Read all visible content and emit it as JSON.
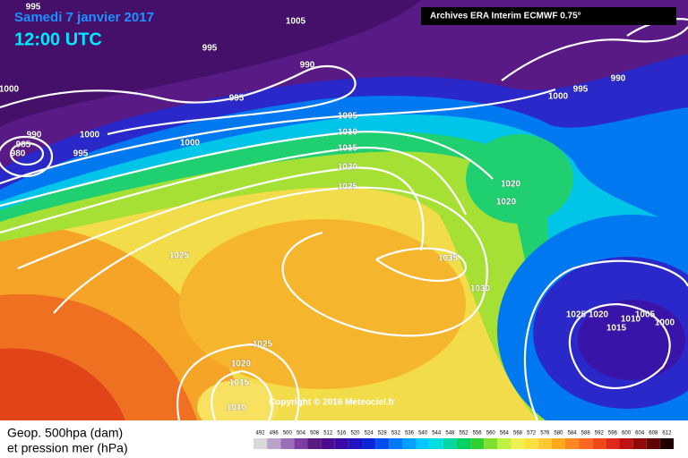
{
  "header": {
    "date": "Samedi 7 janvier 2017",
    "time": "12:00 UTC",
    "source": "Archives ERA Interim ECMWF 0.75°"
  },
  "copyright": "Copyright © 2016 Meteociel.fr",
  "legend": {
    "line1": "Geop. 500hpa (dam)",
    "line2": "et pression mer (hPa)"
  },
  "colorbar": {
    "labels": [
      492,
      496,
      500,
      504,
      508,
      512,
      516,
      520,
      524,
      528,
      532,
      536,
      540,
      544,
      548,
      552,
      556,
      560,
      564,
      568,
      572,
      576,
      580,
      584,
      588,
      592,
      596,
      600,
      604,
      608,
      612
    ],
    "colors": [
      "#d8d8d8",
      "#b9a3c9",
      "#9a6fb5",
      "#7a3e9f",
      "#5a1a82",
      "#4b0a8f",
      "#3a0aa8",
      "#2014c0",
      "#0a28d8",
      "#0050f0",
      "#0078ff",
      "#00a0ff",
      "#00c8ff",
      "#00e0e0",
      "#00d8a0",
      "#00d060",
      "#30d030",
      "#80e030",
      "#c0f040",
      "#f0f050",
      "#ffe040",
      "#ffc830",
      "#ffa820",
      "#ff8820",
      "#ff6820",
      "#f04818",
      "#e02818",
      "#c01010",
      "#900808",
      "#600404",
      "#200000"
    ]
  },
  "isobar_labels": [
    "995",
    "1005",
    "995",
    "990",
    "1000",
    "995",
    "990",
    "985",
    "980",
    "1000",
    "995",
    "1000",
    "1005",
    "1010",
    "1015",
    "1020",
    "1025",
    "1025",
    "1035",
    "1030",
    "1025",
    "1020",
    "1015",
    "1010",
    "1020",
    "1020",
    "1025",
    "1020",
    "1010",
    "1005",
    "1015",
    "1000",
    "990",
    "995",
    "1000"
  ]
}
